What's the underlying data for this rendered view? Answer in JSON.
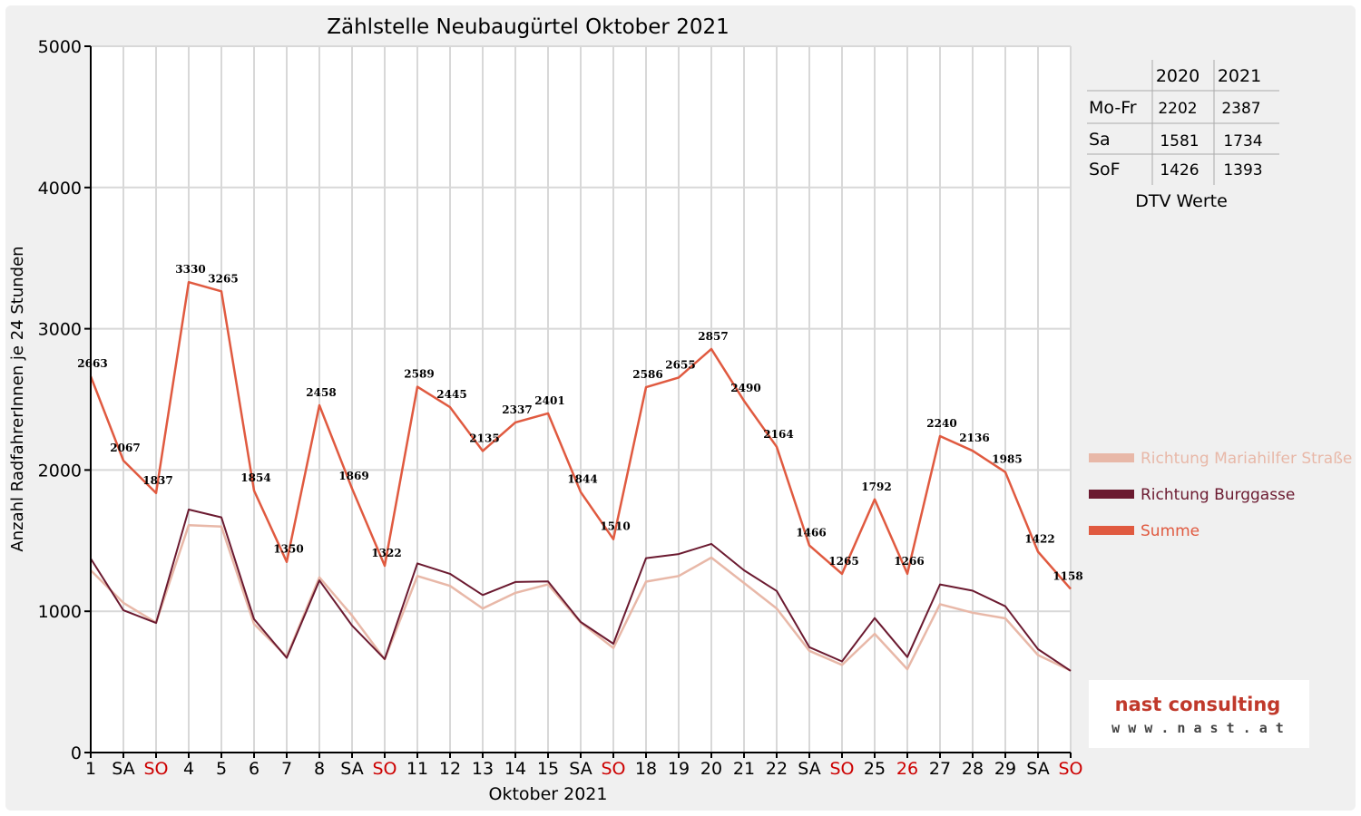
{
  "chart_data": {
    "type": "line",
    "title": "Zählstelle Neubaugürtel Oktober 2021",
    "xlabel": "Oktober 2021",
    "ylabel": "Anzahl RadfahrerInnen je 24 Stunden",
    "ylim": [
      0,
      5000
    ],
    "yticks": [
      "0",
      "1000",
      "2000",
      "3000",
      "4000",
      "5000"
    ],
    "grid": true,
    "legend_position": "right",
    "categories": [
      "1",
      "SA",
      "SO",
      "4",
      "5",
      "6",
      "7",
      "8",
      "SA",
      "SO",
      "11",
      "12",
      "13",
      "14",
      "15",
      "SA",
      "SO",
      "18",
      "19",
      "20",
      "21",
      "22",
      "SA",
      "SO",
      "25",
      "26",
      "27",
      "28",
      "29",
      "SA",
      "SO"
    ],
    "red_categories": [
      2,
      9,
      16,
      23,
      25,
      30
    ],
    "series": [
      {
        "name": "Richtung Mariahilfer Straße",
        "color": "#e8b8a8",
        "values": [
          1290,
          1060,
          920,
          1610,
          1600,
          910,
          680,
          1240,
          970,
          660,
          1250,
          1180,
          1020,
          1130,
          1190,
          920,
          740,
          1210,
          1250,
          1380,
          1200,
          1020,
          720,
          620,
          840,
          590,
          1050,
          990,
          950,
          690,
          580
        ]
      },
      {
        "name": "Richtung Burggasse",
        "color": "#6b1a30",
        "values": [
          1373,
          1007,
          917,
          1720,
          1665,
          944,
          670,
          1218,
          899,
          662,
          1339,
          1265,
          1115,
          1207,
          1211,
          924,
          770,
          1376,
          1405,
          1477,
          1290,
          1144,
          746,
          645,
          952,
          676,
          1190,
          1146,
          1035,
          732,
          578
        ]
      },
      {
        "name": "Summe",
        "color": "#e05a40",
        "values": [
          2663,
          2067,
          1837,
          3330,
          3265,
          1854,
          1350,
          2458,
          1869,
          1322,
          2589,
          2445,
          2135,
          2337,
          2401,
          1844,
          1510,
          2586,
          2655,
          2857,
          2490,
          2164,
          1466,
          1265,
          1792,
          1266,
          2240,
          2136,
          1985,
          1422,
          1158
        ]
      }
    ]
  },
  "dtv_table": {
    "headers": [
      "",
      "2020",
      "2021"
    ],
    "rows": [
      {
        "label": "Mo-Fr",
        "v2020": "2202",
        "v2021": "2387"
      },
      {
        "label": "Sa",
        "v2020": "1581",
        "v2021": "1734"
      },
      {
        "label": "SoF",
        "v2020": "1426",
        "v2021": "1393"
      }
    ],
    "caption": "DTV Werte"
  },
  "logo": {
    "line1": "nast consulting",
    "line2": "w w w . n a s t . a t"
  },
  "colors": {
    "accent_red": "#cc0000",
    "grid": "#d8d8d8"
  }
}
